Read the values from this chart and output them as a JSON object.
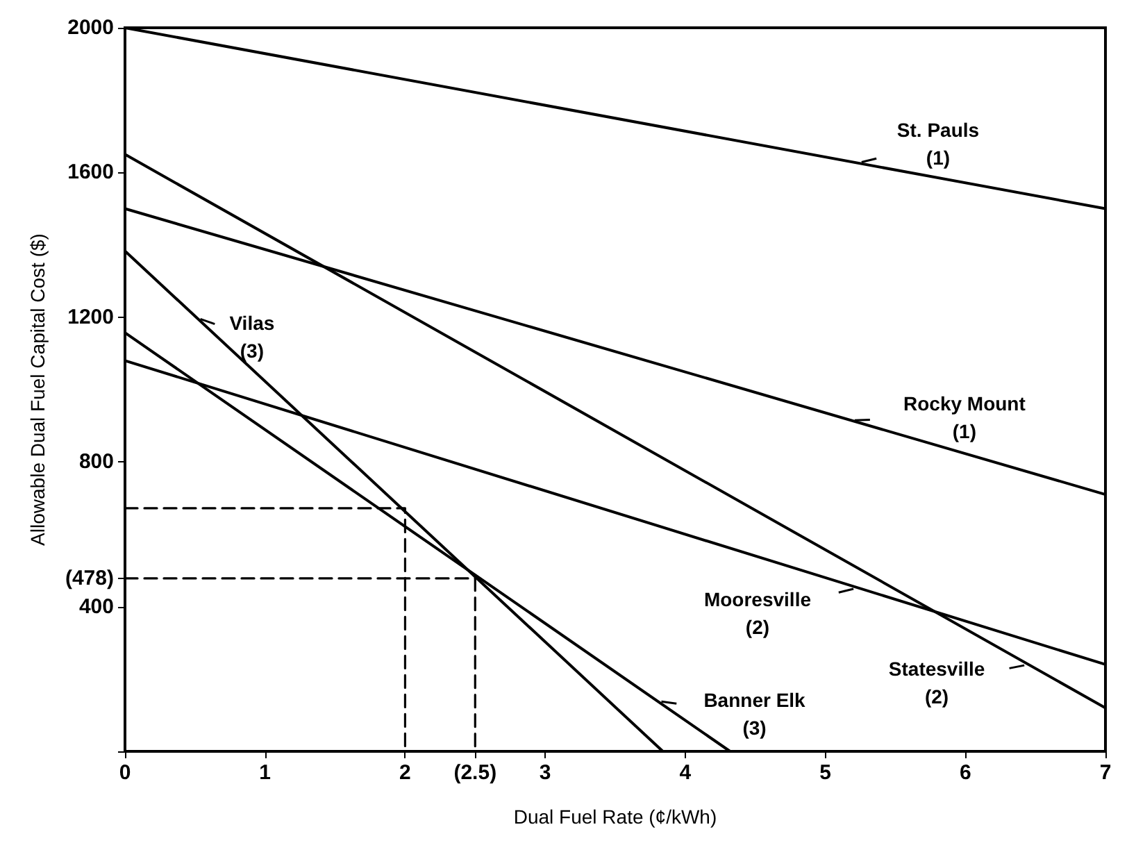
{
  "chart_data": {
    "type": "line",
    "xlabel": "Dual Fuel Rate (¢/kWh)",
    "ylabel": "Allowable Dual Fuel Capital Cost ($)",
    "xlim": [
      0,
      7
    ],
    "ylim": [
      0,
      2000
    ],
    "xticks": [
      0,
      1,
      2,
      {
        "value": 2.5,
        "label": "(2.5)"
      },
      3,
      4,
      5,
      6,
      7
    ],
    "yticks": [
      {
        "value": 0,
        "label": null
      },
      400,
      {
        "value": 478,
        "label": "(478)"
      },
      800,
      1200,
      1600,
      2000
    ],
    "marker": "none",
    "series": [
      {
        "color": "#000000",
        "x": [
          0,
          7
        ],
        "values": [
          2000,
          1500
        ]
      },
      {
        "color": "#000000",
        "x": [
          0,
          7
        ],
        "values": [
          1500,
          710
        ]
      },
      {
        "color": "#000000",
        "x": [
          0,
          7
        ],
        "values": [
          1650,
          120
        ]
      },
      {
        "color": "#000000",
        "x": [
          0,
          7
        ],
        "values": [
          1080,
          240
        ]
      },
      {
        "color": "#000000",
        "x": [
          0,
          3.84
        ],
        "values": [
          1383,
          0
        ]
      },
      {
        "color": "#000000",
        "x": [
          0,
          4.32
        ],
        "values": [
          1157,
          0
        ]
      },
      {
        "color": "#000000",
        "x": [
          0,
          2,
          2
        ],
        "values": [
          672,
          672,
          0
        ],
        "line_style": "dashed"
      },
      {
        "color": "#000000",
        "x": [
          0,
          2.5,
          2.5
        ],
        "values": [
          478,
          478,
          0
        ],
        "line_style": "dashed"
      }
    ],
    "annotations": [
      {
        "text": "St. Pauls\n(1)",
        "x": 5.23,
        "y": 1626
      },
      {
        "text": "Rocky Mount\n(1)",
        "x": 5.18,
        "y": 915
      },
      {
        "text": "Vilas\n(3)",
        "x": 0.51,
        "y": 1199
      },
      {
        "text": "Mooresville\n(2)",
        "x": 5.23,
        "y": 452
      },
      {
        "text": "Banner Elk\n(3)",
        "x": 3.8,
        "y": 139
      },
      {
        "text": "Statesville\n(2)",
        "x": 6.45,
        "y": 240
      }
    ]
  }
}
